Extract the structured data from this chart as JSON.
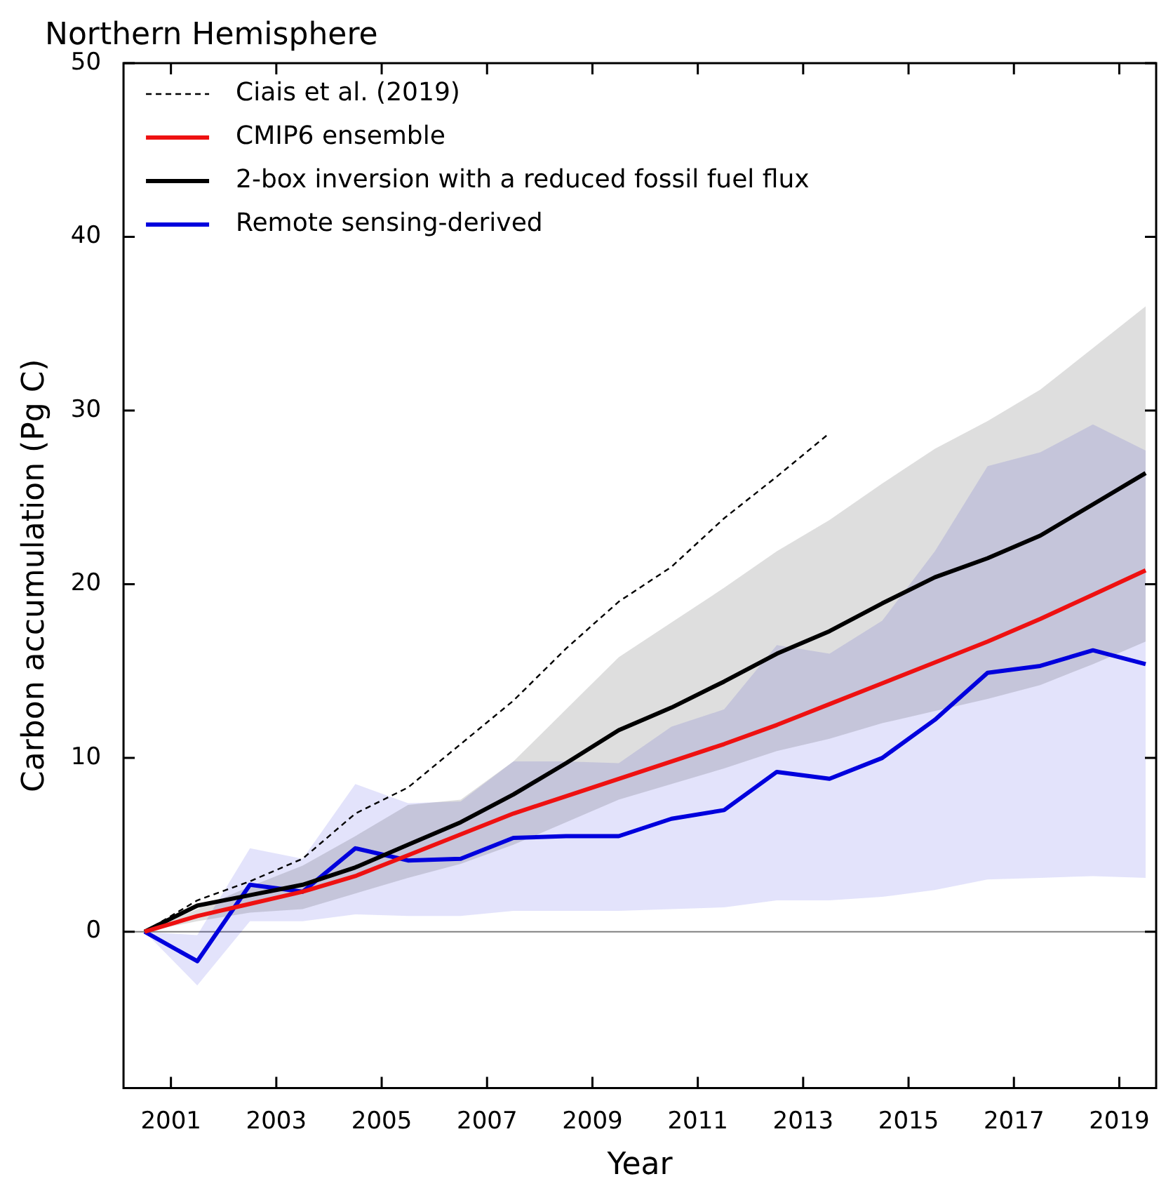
{
  "chart_data": {
    "type": "line",
    "title": "Northern Hemisphere",
    "xlabel": "Year",
    "ylabel": "Carbon accumulation (Pg C)",
    "x": [
      2000.5,
      2001.5,
      2002.5,
      2003.5,
      2004.5,
      2005.5,
      2006.5,
      2007.5,
      2008.5,
      2009.5,
      2010.5,
      2011.5,
      2012.5,
      2013.5,
      2014.5,
      2015.5,
      2016.5,
      2017.5,
      2018.5,
      2019.5
    ],
    "series": [
      {
        "name": "Ciais et al. (2019)",
        "color": "#000000",
        "line_style": "dashed",
        "values": [
          0,
          1.8,
          2.9,
          4.2,
          6.8,
          8.3,
          10.8,
          13.3,
          16.3,
          19.0,
          21.0,
          23.8,
          26.2,
          28.7,
          null,
          null,
          null,
          null,
          null,
          null
        ]
      },
      {
        "name": "CMIP6 ensemble",
        "color": "#ee1111",
        "values": [
          0,
          0.9,
          1.6,
          2.3,
          3.2,
          4.4,
          5.6,
          6.8,
          7.8,
          8.8,
          9.8,
          10.8,
          11.9,
          13.1,
          14.3,
          15.5,
          16.7,
          18.0,
          19.4,
          20.8
        ]
      },
      {
        "name": "2-box inversion with a reduced fossil fuel flux",
        "color": "#000000",
        "values": [
          0,
          1.5,
          2.1,
          2.7,
          3.7,
          5.0,
          6.3,
          7.9,
          9.7,
          11.6,
          12.9,
          14.4,
          16.0,
          17.3,
          18.9,
          20.4,
          21.5,
          22.8,
          24.6,
          26.4
        ],
        "lower": [
          0,
          0.6,
          1.1,
          1.3,
          2.2,
          3.1,
          3.9,
          5.0,
          6.3,
          7.6,
          8.5,
          9.4,
          10.4,
          11.1,
          12.0,
          12.7,
          13.4,
          14.2,
          15.4,
          16.7
        ],
        "upper": [
          0,
          1.3,
          2.6,
          3.8,
          5.5,
          7.3,
          7.6,
          9.8,
          12.8,
          15.8,
          17.8,
          19.8,
          21.9,
          23.7,
          25.8,
          27.8,
          29.4,
          31.2,
          33.6,
          36.0
        ]
      },
      {
        "name": "Remote sensing-derived",
        "color": "#0000dd",
        "values": [
          0,
          -1.7,
          2.7,
          2.3,
          4.8,
          4.1,
          4.2,
          5.4,
          5.5,
          5.5,
          6.5,
          7.0,
          9.2,
          8.8,
          10.0,
          12.2,
          14.9,
          15.3,
          16.2,
          15.4
        ],
        "lower": [
          0,
          -3.1,
          0.6,
          0.6,
          1.0,
          0.9,
          0.9,
          1.2,
          1.2,
          1.2,
          1.3,
          1.4,
          1.8,
          1.8,
          2.0,
          2.4,
          3.0,
          3.1,
          3.2,
          3.1
        ],
        "upper": [
          0,
          -0.2,
          4.8,
          4.2,
          8.5,
          7.4,
          7.5,
          9.8,
          9.8,
          9.7,
          11.8,
          12.8,
          16.5,
          16.0,
          17.9,
          21.9,
          26.8,
          27.6,
          29.2,
          27.7
        ]
      }
    ],
    "xlim": [
      2000.1,
      2019.7
    ],
    "xticks": [
      2001,
      2003,
      2005,
      2007,
      2009,
      2011,
      2013,
      2015,
      2017,
      2019
    ],
    "ylim": [
      -9,
      50
    ],
    "yticks": [
      0,
      10,
      20,
      30,
      40,
      50
    ],
    "ref_lines": [
      {
        "axis": "y",
        "value": 0,
        "color": "#808080"
      }
    ],
    "legend": "top left",
    "grid": false
  }
}
